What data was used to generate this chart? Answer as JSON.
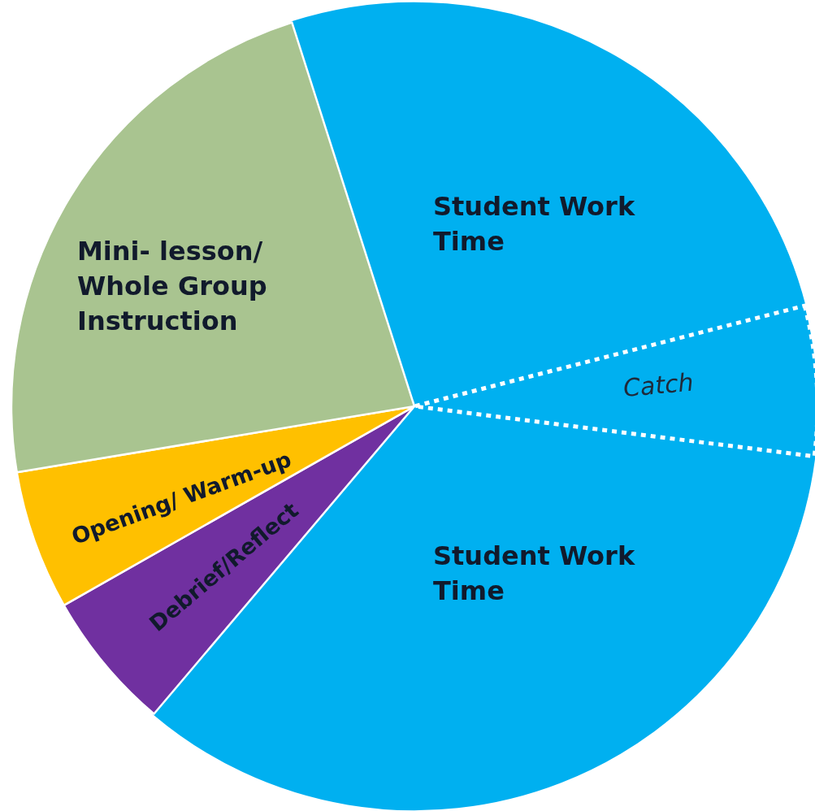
{
  "chart_data": {
    "type": "pie",
    "categories": [
      "Student Work Time",
      "Catch",
      "Student Work Time",
      "Debrief/Reflect",
      "Opening/ Warm-up",
      "Mini- lesson/ Whole Group Instruction"
    ],
    "values": [
      25.9,
      6,
      34.2,
      5.6,
      5.6,
      22.7
    ],
    "colors": [
      "#00b0f0",
      "#00b0f0",
      "#00b0f0",
      "#7030a0",
      "#ffc000",
      "#a9c490"
    ]
  }
}
